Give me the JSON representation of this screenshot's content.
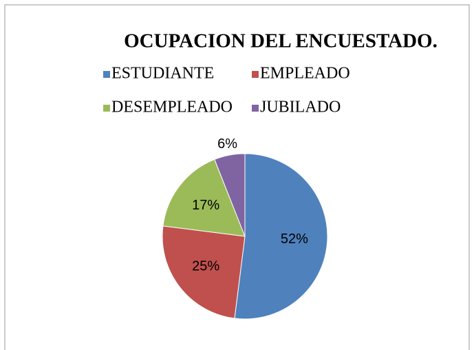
{
  "chart_data": {
    "type": "pie",
    "title": "OCUPACION DEL ENCUESTADO.",
    "categories": [
      "ESTUDIANTE",
      "EMPLEADO",
      "DESEMPLEADO",
      "JUBILADO"
    ],
    "values": [
      52,
      25,
      17,
      6
    ],
    "value_labels": [
      "52%",
      "25%",
      "17%",
      "6%"
    ],
    "colors": [
      "#4f81bd",
      "#c0504d",
      "#9bbb59",
      "#8064a2"
    ],
    "legend": "top"
  }
}
